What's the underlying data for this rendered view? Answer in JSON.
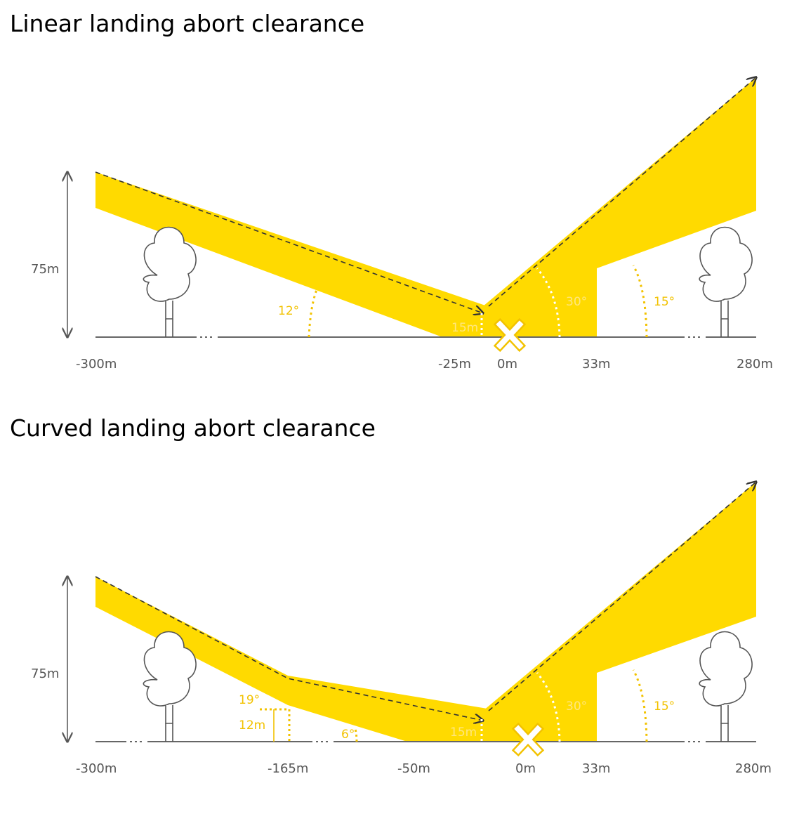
{
  "colors": {
    "zone": "#FFDA00",
    "ground": "#666666",
    "path": "#333333",
    "angle": "#F2C200"
  },
  "diagrams": [
    {
      "title": "Linear landing abort clearance",
      "height_label": "75m",
      "x_labels": [
        "-300m",
        "-25m",
        "0m",
        "33m",
        "280m"
      ],
      "angles": {
        "approach": "12°",
        "departure_steep": "30°",
        "departure_shallow": "15°"
      },
      "pad_height": "15m"
    },
    {
      "title": "Curved landing abort clearance",
      "height_label": "75m",
      "x_labels": [
        "-300m",
        "-165m",
        "-50m",
        "0m",
        "33m",
        "280m"
      ],
      "angles": {
        "approach_upper": "19°",
        "approach_lower": "6°",
        "departure_steep": "30°",
        "departure_shallow": "15°"
      },
      "heights": {
        "transition": "12m"
      },
      "pad_height": "15m"
    }
  ]
}
